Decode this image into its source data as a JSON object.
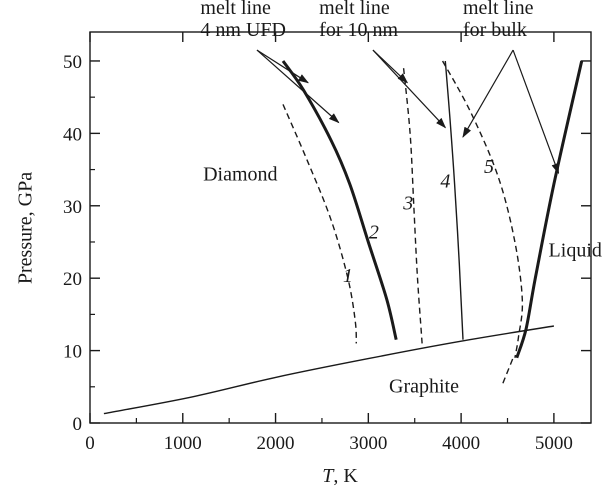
{
  "chart_data": {
    "type": "line",
    "xlabel": {
      "symbol": "T",
      "unit": ", K"
    },
    "ylabel": "Pressure, GPa",
    "xlim": [
      0,
      5400
    ],
    "ylim": [
      0,
      54
    ],
    "x_ticks": [
      0,
      1000,
      2000,
      3000,
      4000,
      5000
    ],
    "y_ticks": [
      0,
      10,
      20,
      30,
      40,
      50
    ],
    "grid": false,
    "series": [
      {
        "id": "1",
        "style": "dashed",
        "x": [
          2080,
          2350,
          2600,
          2780,
          2860,
          2870
        ],
        "y": [
          44,
          36,
          28,
          20,
          14,
          11
        ]
      },
      {
        "id": "2",
        "style": "bold",
        "x": [
          2080,
          2300,
          2600,
          2800,
          3000,
          3200,
          3300
        ],
        "y": [
          50,
          46,
          39,
          33,
          25,
          17,
          11.5
        ]
      },
      {
        "id": "3",
        "style": "dashed",
        "x": [
          3380,
          3450,
          3490,
          3530,
          3580
        ],
        "y": [
          49,
          40,
          30,
          20,
          11
        ]
      },
      {
        "id": "4",
        "style": "solid",
        "x": [
          3830,
          3880,
          3930,
          3980,
          4020
        ],
        "y": [
          50,
          42,
          33,
          22,
          11.5
        ]
      },
      {
        "id": "5",
        "style": "dashed",
        "x": [
          3800,
          4100,
          4400,
          4580,
          4660,
          4620,
          4580
        ],
        "y": [
          50,
          43,
          34,
          25,
          17,
          12,
          9
        ]
      },
      {
        "id": "graphite-diamond",
        "style": "solid",
        "x": [
          150,
          1100,
          2000,
          3000,
          4000,
          5000
        ],
        "y": [
          1.3,
          3.6,
          6.3,
          8.9,
          11.3,
          13.4
        ]
      },
      {
        "id": "bulk-melt",
        "style": "bold",
        "x": [
          4600,
          4700,
          4800,
          5000,
          5300
        ],
        "y": [
          9,
          13,
          20,
          33,
          50
        ]
      },
      {
        "id": "graphite-liquid-extension",
        "style": "dashed",
        "x": [
          4450,
          4560
        ],
        "y": [
          5.5,
          9
        ]
      }
    ],
    "curve_numbers": [
      {
        "text": "1",
        "x": 2780,
        "y": 19.5
      },
      {
        "text": "2",
        "x": 3060,
        "y": 25.5
      },
      {
        "text": "3",
        "x": 3430,
        "y": 29.5
      },
      {
        "text": "4",
        "x": 3830,
        "y": 32.5
      },
      {
        "text": "5",
        "x": 4300,
        "y": 34.5
      }
    ],
    "region_labels": [
      {
        "text": "Diamond",
        "x": 1620,
        "y": 33.5
      },
      {
        "text": "Graphite",
        "x": 3600,
        "y": 4.2
      },
      {
        "text": "Liquid",
        "x": 5230,
        "y": 23
      }
    ],
    "annotations": [
      {
        "lines": [
          "melt line",
          "4 nm UFD"
        ],
        "x": 1190,
        "y": 56.5,
        "arrow_from": [
          1800,
          51.5
        ],
        "arrows_to": [
          [
            2350,
            47
          ],
          [
            2680,
            41.5
          ]
        ]
      },
      {
        "lines": [
          "melt line",
          "for 10 nm"
        ],
        "x": 2470,
        "y": 56.5,
        "arrow_from": [
          3050,
          51.5
        ],
        "arrows_to": [
          [
            3420,
            47
          ],
          [
            3830,
            40.8
          ]
        ]
      },
      {
        "lines": [
          "melt line",
          "for bulk"
        ],
        "x": 4020,
        "y": 56.5,
        "arrow_from": [
          4560,
          51.5
        ],
        "arrows_to": [
          [
            4020,
            39.5
          ],
          [
            5050,
            34.5
          ]
        ]
      }
    ]
  }
}
